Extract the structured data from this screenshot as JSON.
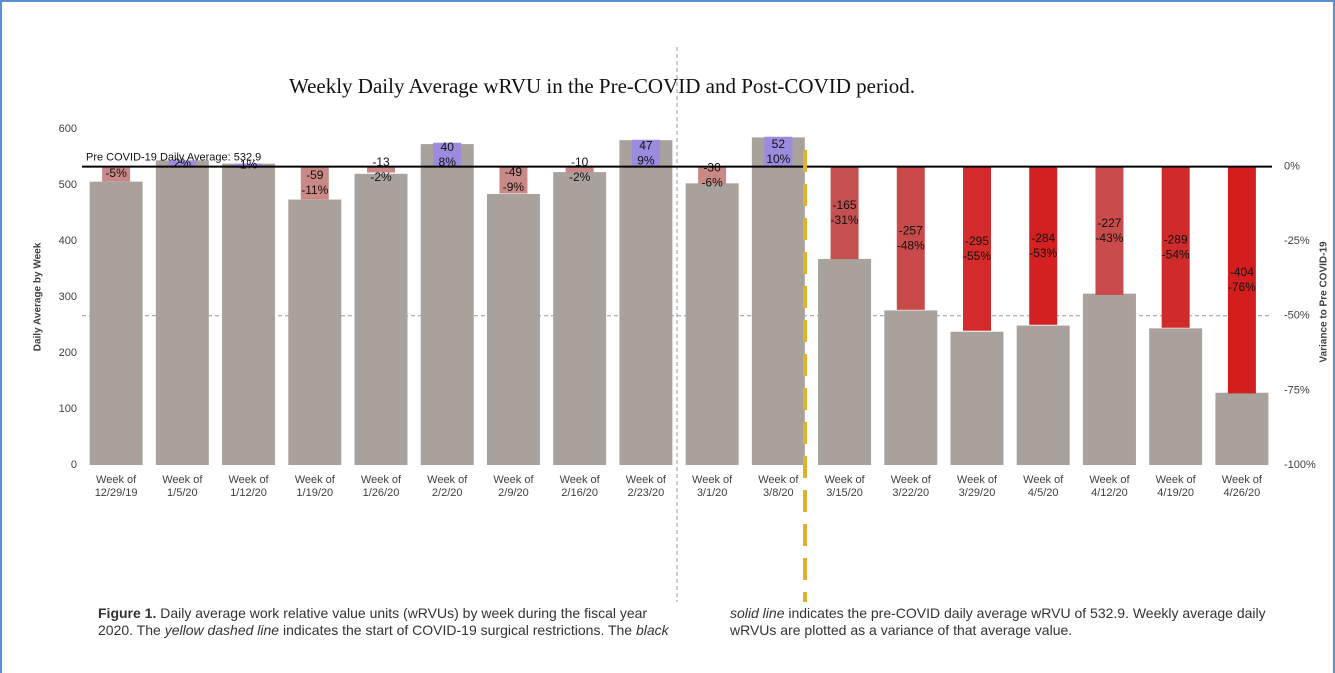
{
  "chart_data": {
    "type": "bar",
    "title": "Weekly Daily Average wRVU in the Pre-COVID and Post-COVID period.",
    "y_label": "Daily Average by Week",
    "y2_label": "Variance to Pre COVID-19",
    "categories": [
      "Week of\n12/29/19",
      "Week of\n1/5/20",
      "Week of\n1/12/20",
      "Week of\n1/19/20",
      "Week of\n1/26/20",
      "Week of\n2/2/20",
      "Week of\n2/9/20",
      "Week of\n2/16/20",
      "Week of\n2/23/20",
      "Week of\n3/1/20",
      "Week of\n3/8/20",
      "Week of\n3/15/20",
      "Week of\n3/22/20",
      "Week of\n3/29/20",
      "Week of\n4/5/20",
      "Week of\n4/12/20",
      "Week of\n4/19/20",
      "Week of\n4/26/20"
    ],
    "series": [
      {
        "name": "Daily Average",
        "color": "#a8a19c",
        "values": [
          506,
          544,
          538,
          474,
          520,
          573,
          484,
          523,
          580,
          503,
          585,
          368,
          276,
          238,
          249,
          306,
          244,
          129
        ]
      },
      {
        "name": "Variance",
        "axis": "y2",
        "colors": [
          "#c98a87",
          "#9d8be0",
          "#9d8be0",
          "#c98a87",
          "#c98a87",
          "#9d8be0",
          "#c98a87",
          "#c98a87",
          "#9d8be0",
          "#c98a87",
          "#9d8be0",
          "#c45050",
          "#c94a4a",
          "#d42a2a",
          "#d42020",
          "#c94b4b",
          "#d02a2a",
          "#d41e1e"
        ],
        "values": [
          -5,
          2,
          1,
          -11,
          -2,
          8,
          -9,
          -2,
          9,
          -6,
          10,
          -31,
          -48,
          -55,
          -53,
          -43,
          -54,
          -76
        ],
        "value_labels": [
          "-5%",
          "2%",
          "1%",
          "-11%",
          "-2%",
          "8%",
          "-9%",
          "-2%",
          "9%",
          "-6%",
          "10%",
          "-31%",
          "-48%",
          "-55%",
          "-53%",
          "-43%",
          "-54%",
          "-76%"
        ],
        "differences": [
          null,
          null,
          null,
          -59,
          -13,
          40,
          -49,
          -10,
          47,
          -30,
          52,
          -165,
          -257,
          -295,
          -284,
          -227,
          -289,
          -404
        ]
      }
    ],
    "reference": {
      "value": 532.9,
      "label": "Pre COVID-19 Daily Average: 532.9"
    },
    "ylim": [
      0,
      600
    ],
    "yticks": [
      0,
      100,
      200,
      300,
      400,
      500,
      600
    ],
    "y2lim": [
      -100,
      12.6
    ],
    "y2ticks": [
      {
        "value": 0,
        "label": "0%"
      },
      {
        "value": -25,
        "label": "-25%"
      },
      {
        "value": -50,
        "label": "-50%"
      },
      {
        "value": -75,
        "label": "-75%"
      },
      {
        "value": -100,
        "label": "-100%"
      }
    ]
  },
  "caption": {
    "label": "Figure 1.",
    "parts": [
      "Daily average work relative value units (wRVUs) by week during the fiscal year 2020. The ",
      "yellow dashed line",
      " indicates the start of COVID-19 surgical restrictions. The ",
      "black solid line",
      " indicates the pre-COVID daily average wRVU of 532.9. Weekly average daily wRVUs are plotted as a variance of that average value."
    ]
  }
}
